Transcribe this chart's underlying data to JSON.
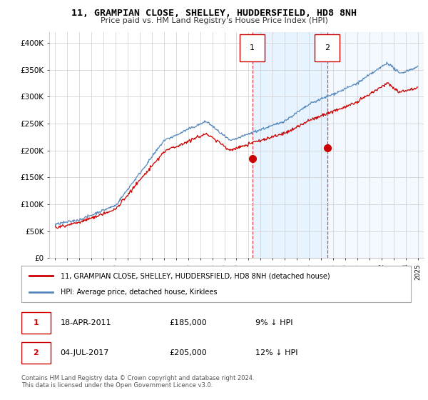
{
  "title": "11, GRAMPIAN CLOSE, SHELLEY, HUDDERSFIELD, HD8 8NH",
  "subtitle": "Price paid vs. HM Land Registry's House Price Index (HPI)",
  "legend_line1": "11, GRAMPIAN CLOSE, SHELLEY, HUDDERSFIELD, HD8 8NH (detached house)",
  "legend_line2": "HPI: Average price, detached house, Kirklees",
  "transaction1": {
    "label": "1",
    "date": "18-APR-2011",
    "price": "£185,000",
    "pct": "9% ↓ HPI",
    "year": 2011.3,
    "value": 185000
  },
  "transaction2": {
    "label": "2",
    "date": "04-JUL-2017",
    "price": "£205,000",
    "pct": "12% ↓ HPI",
    "year": 2017.5,
    "value": 205000
  },
  "footer": "Contains HM Land Registry data © Crown copyright and database right 2024.\nThis data is licensed under the Open Government Licence v3.0.",
  "ylim": [
    0,
    420000
  ],
  "yticks": [
    0,
    50000,
    100000,
    150000,
    200000,
    250000,
    300000,
    350000,
    400000
  ],
  "ytick_labels": [
    "£0",
    "£50K",
    "£100K",
    "£150K",
    "£200K",
    "£250K",
    "£300K",
    "£350K",
    "£400K"
  ],
  "xlim_start": 1994.5,
  "xlim_end": 2025.5,
  "hpi_color": "#5588bb",
  "price_color": "#cc0000",
  "marker_color": "#cc0000",
  "vline_color": "#dd4444",
  "shade_color": "#ddeeff",
  "background_color": "#ffffff",
  "grid_color": "#cccccc",
  "seed": 42
}
